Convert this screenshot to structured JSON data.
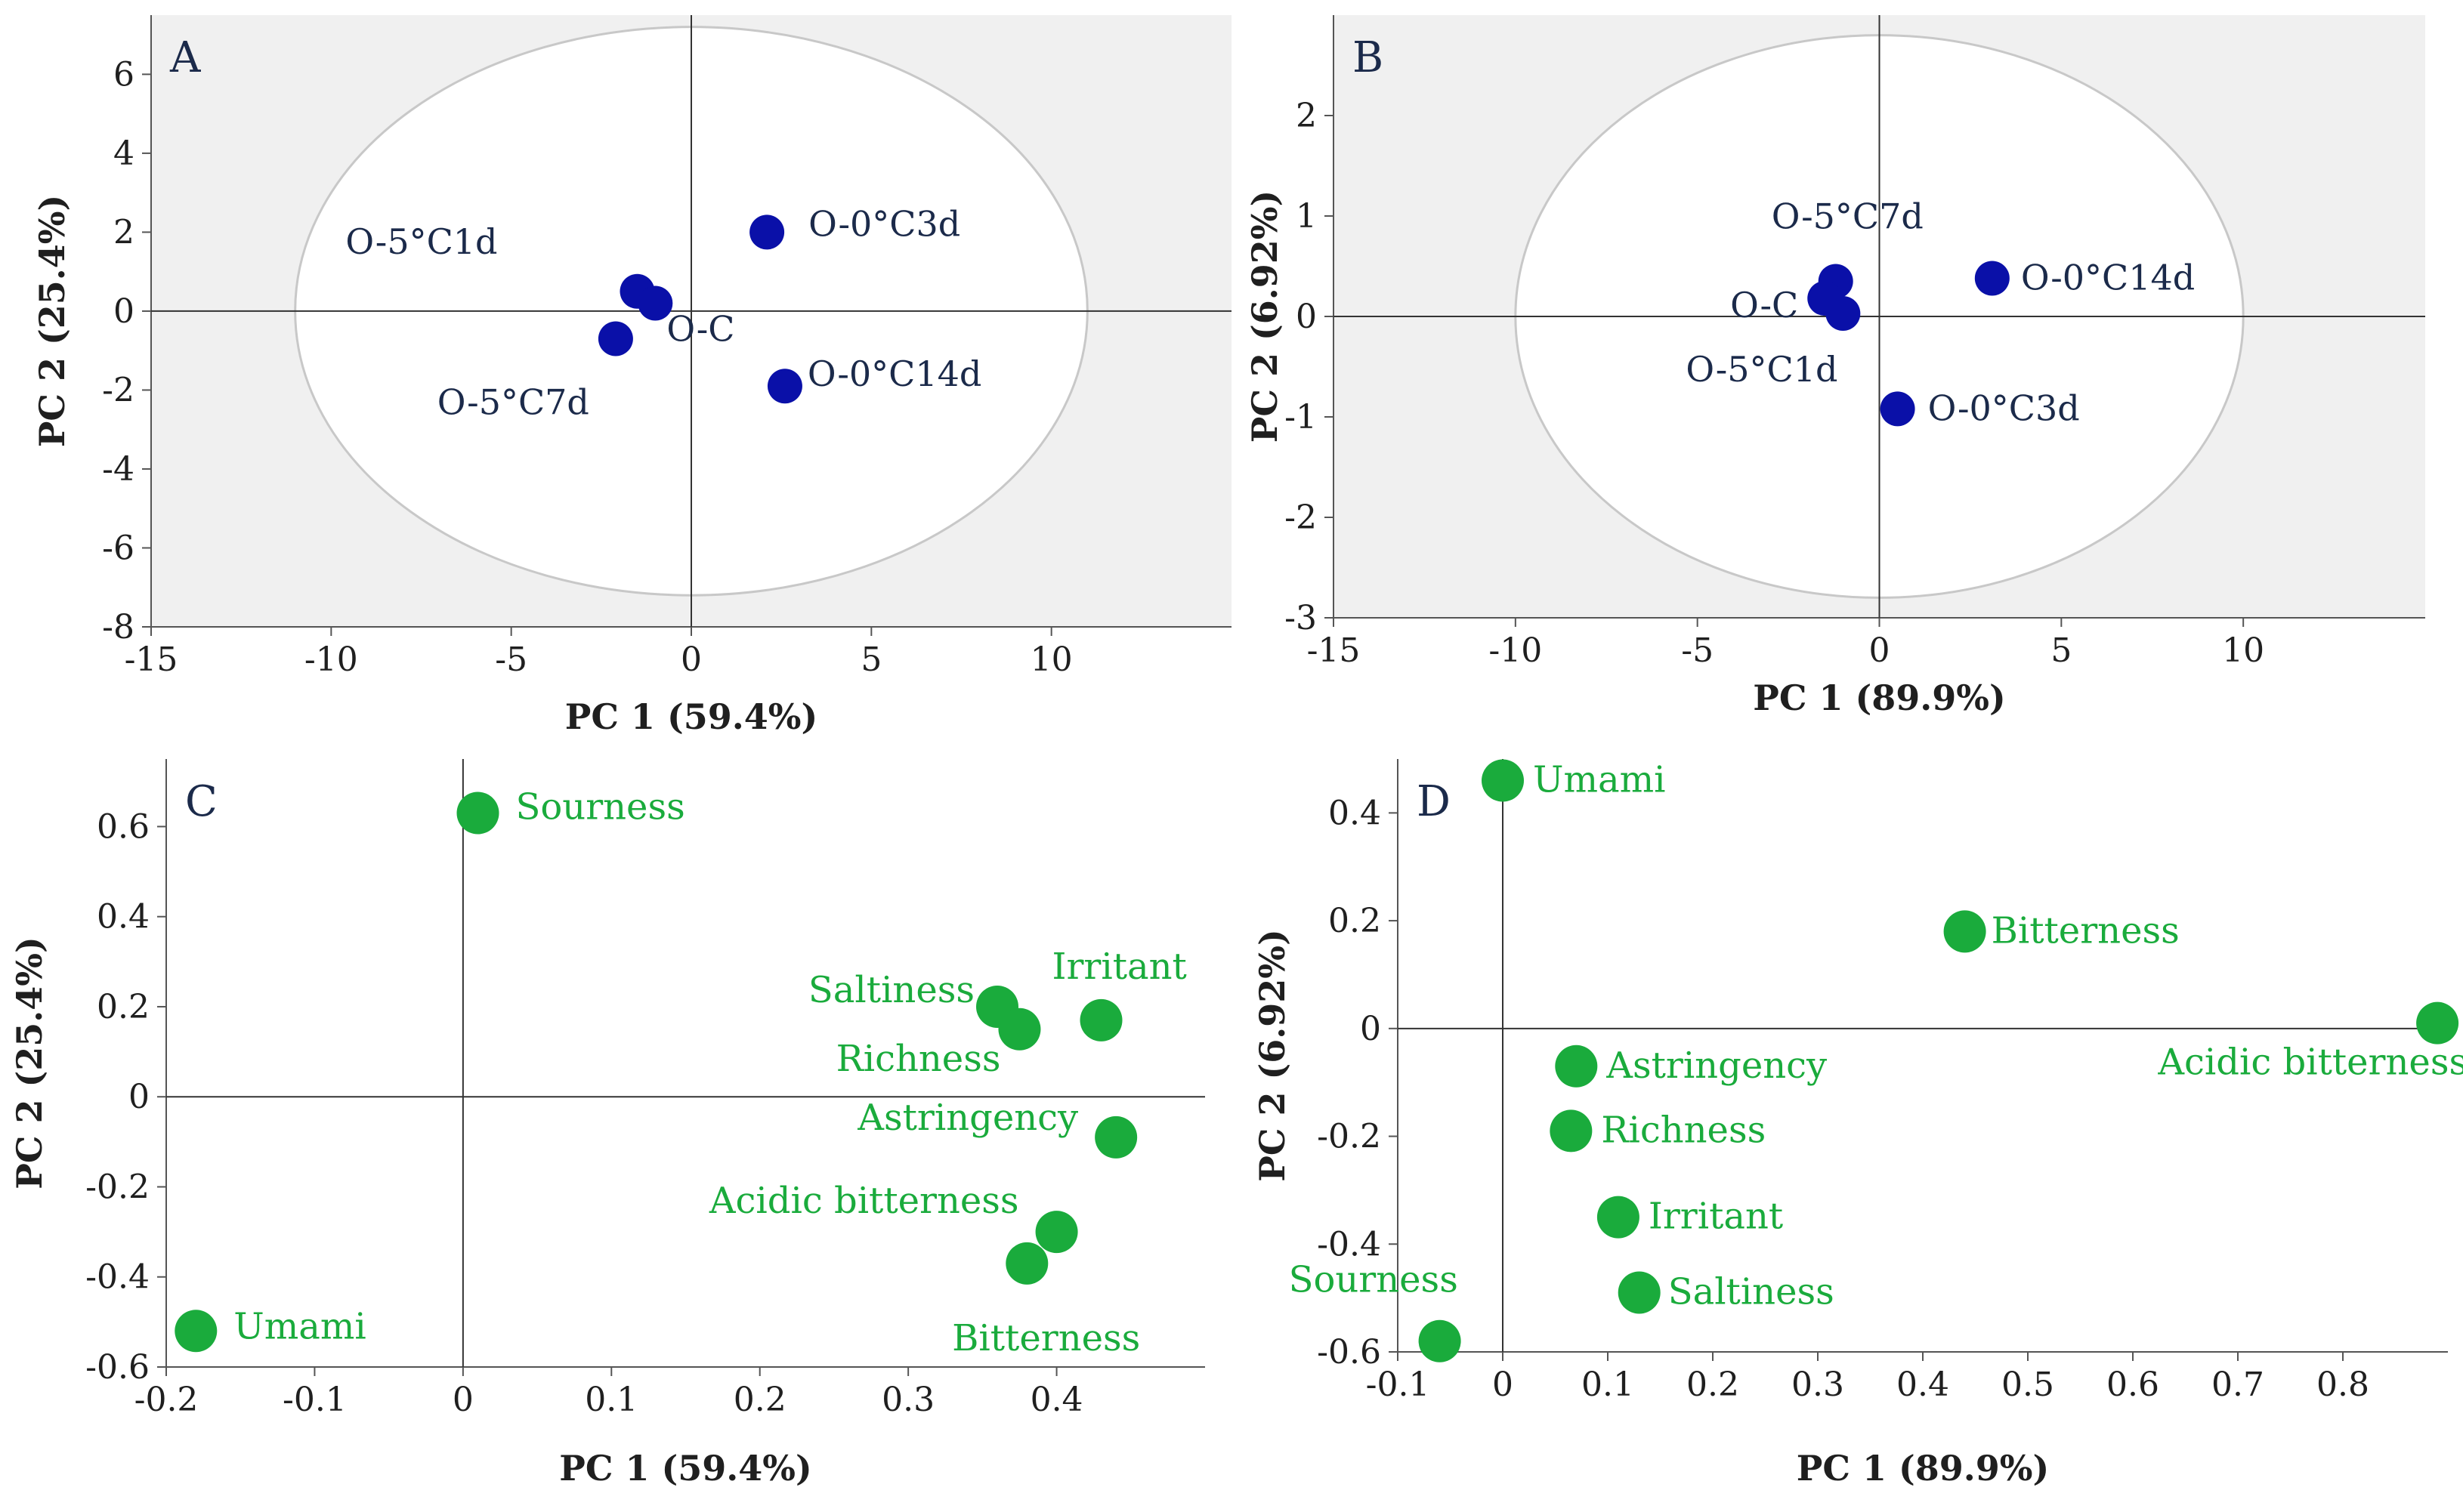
{
  "figure": {
    "colors": {
      "scores": "#0a10a8",
      "loadings": "#1aab3c",
      "panel_bg": "#f0f0f0",
      "axis": "#555555"
    }
  },
  "chart_data": [
    {
      "panel": "A",
      "type": "scatter",
      "xlabel": "PC 1 (59.4%)",
      "ylabel": "PC 2 (25.4%)",
      "xlim": [
        -15,
        15
      ],
      "ylim": [
        -8,
        7.5
      ],
      "xticks": [
        -15,
        -10,
        -5,
        0,
        5,
        10
      ],
      "yticks": [
        -8,
        -6,
        -4,
        -2,
        0,
        2,
        4,
        6
      ],
      "shaded_background": true,
      "ellipse": {
        "cx": 0,
        "cy": 0,
        "rx": 11,
        "ry": 7.2
      },
      "marker_color": "#0a10a8",
      "points": [
        {
          "label": "O-5°C1d",
          "x": -1.5,
          "y": 0.5
        },
        {
          "label": "O-C",
          "x": -1.0,
          "y": 0.2
        },
        {
          "label": "O-5°C7d",
          "x": -2.1,
          "y": -0.7
        },
        {
          "label": "O-0°C3d",
          "x": 2.1,
          "y": 2.0
        },
        {
          "label": "O-0°C14d",
          "x": 2.6,
          "y": -1.9
        }
      ]
    },
    {
      "panel": "B",
      "type": "scatter",
      "xlabel": "PC 1 (89.9%)",
      "ylabel": "PC 2 (6.92%)",
      "xlim": [
        -15,
        15
      ],
      "ylim": [
        -3,
        3
      ],
      "xticks": [
        -15,
        -10,
        -5,
        0,
        5,
        10
      ],
      "yticks": [
        -3,
        -2,
        -1,
        0,
        1,
        2
      ],
      "shaded_background": true,
      "ellipse": {
        "cx": 0,
        "cy": 0,
        "rx": 10,
        "ry": 2.8
      },
      "marker_color": "#0a10a8",
      "points": [
        {
          "label": "O-5°C7d",
          "x": -1.2,
          "y": 0.35
        },
        {
          "label": "O-C",
          "x": -1.5,
          "y": 0.18
        },
        {
          "label": "O-5°C1d",
          "x": -1.0,
          "y": 0.03
        },
        {
          "label": "O-0°C14d",
          "x": 3.1,
          "y": 0.38
        },
        {
          "label": "O-0°C3d",
          "x": 0.5,
          "y": -0.92
        }
      ]
    },
    {
      "panel": "C",
      "type": "scatter",
      "xlabel": "PC 1 (59.4%)",
      "ylabel": "PC 2 (25.4%)",
      "xlim": [
        -0.2,
        0.5
      ],
      "ylim": [
        -0.6,
        0.75
      ],
      "xticks": [
        -0.2,
        -0.1,
        0,
        0.1,
        0.2,
        0.3,
        0.4
      ],
      "yticks": [
        -0.6,
        -0.4,
        -0.2,
        0,
        0.2,
        0.4,
        0.6
      ],
      "shaded_background": false,
      "marker_color": "#1aab3c",
      "points": [
        {
          "label": "Sourness",
          "x": 0.01,
          "y": 0.63
        },
        {
          "label": "Saltiness",
          "x": 0.36,
          "y": 0.2
        },
        {
          "label": "Richness",
          "x": 0.375,
          "y": 0.15
        },
        {
          "label": "Irritant",
          "x": 0.43,
          "y": 0.17
        },
        {
          "label": "Astringency",
          "x": 0.44,
          "y": -0.09
        },
        {
          "label": "Acidic bitterness",
          "x": 0.4,
          "y": -0.3
        },
        {
          "label": "Bitterness",
          "x": 0.38,
          "y": -0.37
        },
        {
          "label": "Umami",
          "x": -0.18,
          "y": -0.52
        }
      ]
    },
    {
      "panel": "D",
      "type": "scatter",
      "xlabel": "PC 1 (89.9%)",
      "ylabel": "PC 2 (6.92%)",
      "xlim": [
        -0.1,
        0.9
      ],
      "ylim": [
        -0.6,
        0.5
      ],
      "xticks": [
        -0.1,
        0,
        0.1,
        0.2,
        0.3,
        0.4,
        0.5,
        0.6,
        0.7,
        0.8
      ],
      "yticks": [
        -0.6,
        -0.4,
        -0.2,
        0,
        0.2,
        0.4
      ],
      "shaded_background": false,
      "marker_color": "#1aab3c",
      "points": [
        {
          "label": "Umami",
          "x": 0.0,
          "y": 0.46
        },
        {
          "label": "Bitterness",
          "x": 0.44,
          "y": 0.18
        },
        {
          "label": "Acidic bitterness",
          "x": 0.89,
          "y": 0.01
        },
        {
          "label": "Astringency",
          "x": 0.07,
          "y": -0.07
        },
        {
          "label": "Richness",
          "x": 0.065,
          "y": -0.19
        },
        {
          "label": "Irritant",
          "x": 0.11,
          "y": -0.35
        },
        {
          "label": "Saltiness",
          "x": 0.13,
          "y": -0.49
        },
        {
          "label": "Sourness",
          "x": -0.06,
          "y": -0.58
        }
      ]
    }
  ]
}
